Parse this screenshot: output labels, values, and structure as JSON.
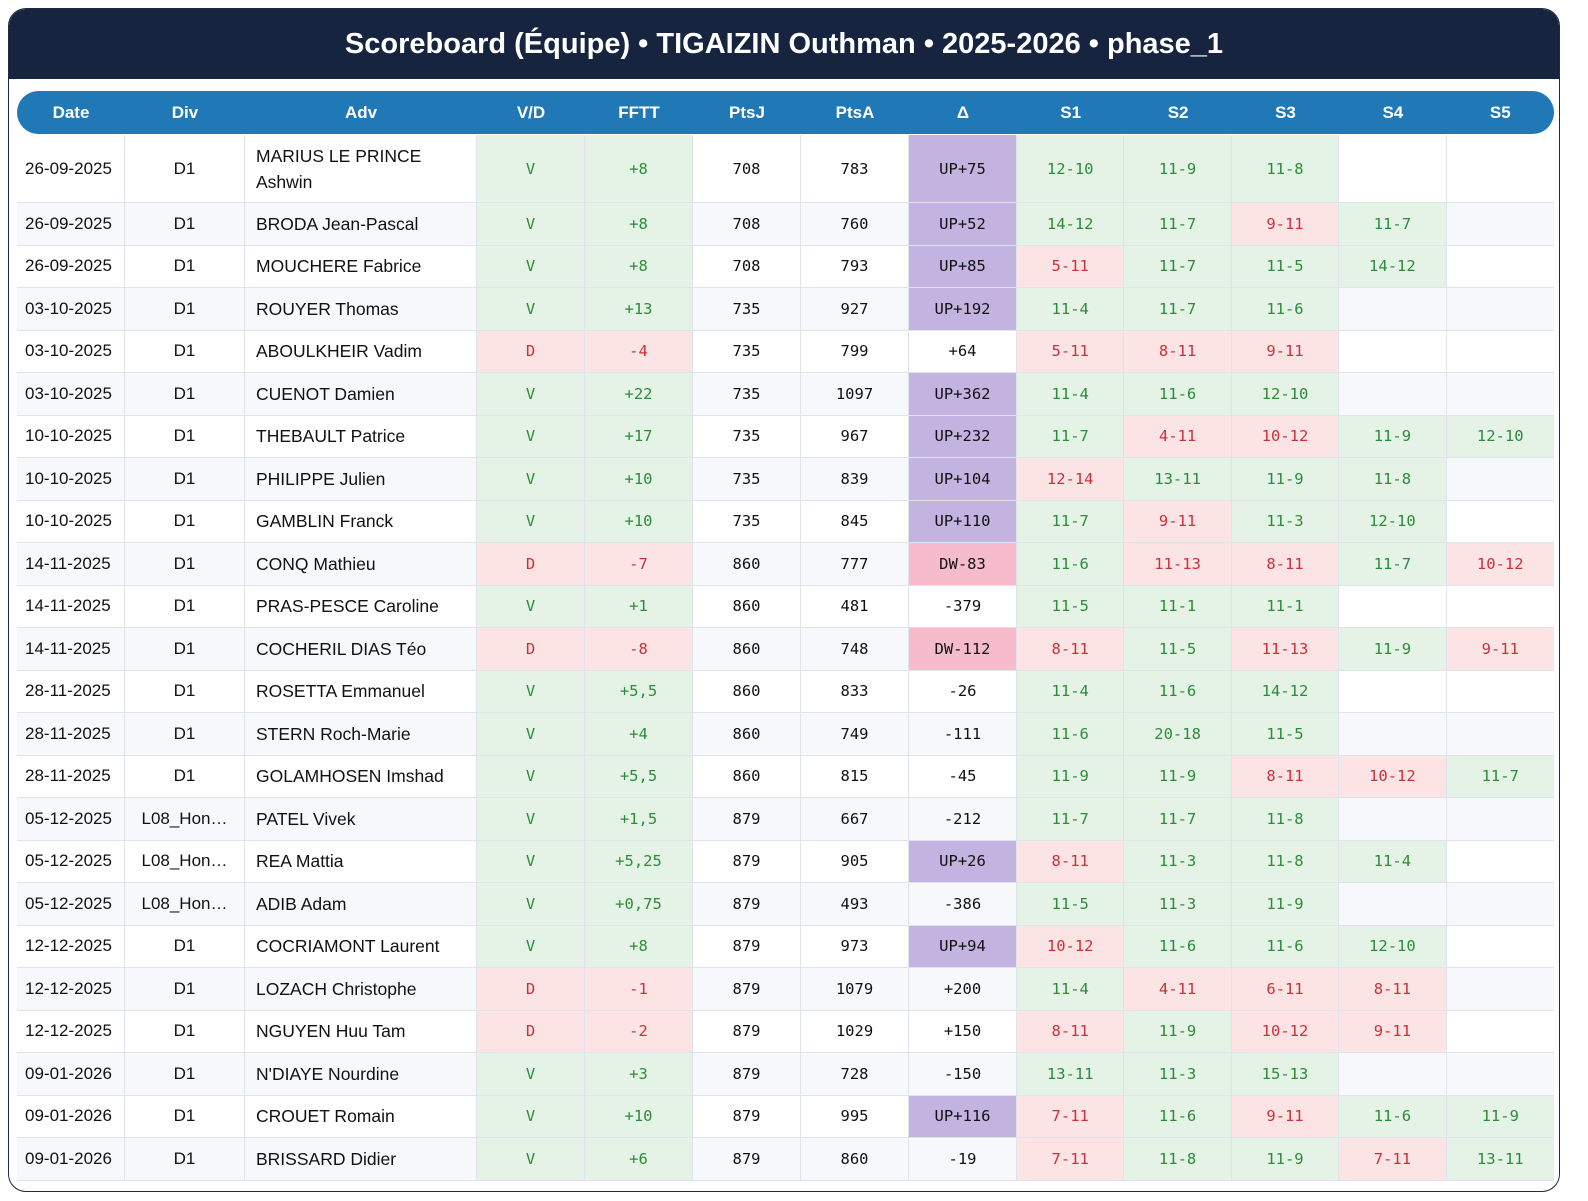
{
  "title": "Scoreboard (Équipe) • TIGAIZIN Outhman • 2025-2026 • phase_1",
  "colors": {
    "header_bg": "#16243f",
    "table_header_bg": "#2079b6",
    "win_bg": "#e4f3e5",
    "win_text": "#2e8b3a",
    "loss_bg": "#fde4e4",
    "loss_text": "#c9323a",
    "up_bg": "#c3b3e0",
    "down_bg": "#f6bccb"
  },
  "columns": [
    "Date",
    "Div",
    "Adv",
    "V/D",
    "FFTT",
    "PtsJ",
    "PtsA",
    "Δ",
    "S1",
    "S2",
    "S3",
    "S4",
    "S5"
  ],
  "rows": [
    {
      "date": "26-09-2025",
      "div": "D1",
      "adv": "MARIUS LE PRINCE Ashwin",
      "vd": "V",
      "fftt": "+8",
      "ptsj": "708",
      "ptsa": "783",
      "delta": "UP+75",
      "sets": [
        "12-10",
        "11-9",
        "11-8",
        "",
        ""
      ]
    },
    {
      "date": "26-09-2025",
      "div": "D1",
      "adv": "BRODA Jean-Pascal",
      "vd": "V",
      "fftt": "+8",
      "ptsj": "708",
      "ptsa": "760",
      "delta": "UP+52",
      "sets": [
        "14-12",
        "11-7",
        "9-11",
        "11-7",
        ""
      ]
    },
    {
      "date": "26-09-2025",
      "div": "D1",
      "adv": "MOUCHERE Fabrice",
      "vd": "V",
      "fftt": "+8",
      "ptsj": "708",
      "ptsa": "793",
      "delta": "UP+85",
      "sets": [
        "5-11",
        "11-7",
        "11-5",
        "14-12",
        ""
      ]
    },
    {
      "date": "03-10-2025",
      "div": "D1",
      "adv": "ROUYER Thomas",
      "vd": "V",
      "fftt": "+13",
      "ptsj": "735",
      "ptsa": "927",
      "delta": "UP+192",
      "sets": [
        "11-4",
        "11-7",
        "11-6",
        "",
        ""
      ]
    },
    {
      "date": "03-10-2025",
      "div": "D1",
      "adv": "ABOULKHEIR Vadim",
      "vd": "D",
      "fftt": "-4",
      "ptsj": "735",
      "ptsa": "799",
      "delta": "+64",
      "sets": [
        "5-11",
        "8-11",
        "9-11",
        "",
        ""
      ]
    },
    {
      "date": "03-10-2025",
      "div": "D1",
      "adv": "CUENOT Damien",
      "vd": "V",
      "fftt": "+22",
      "ptsj": "735",
      "ptsa": "1097",
      "delta": "UP+362",
      "sets": [
        "11-4",
        "11-6",
        "12-10",
        "",
        ""
      ]
    },
    {
      "date": "10-10-2025",
      "div": "D1",
      "adv": "THEBAULT Patrice",
      "vd": "V",
      "fftt": "+17",
      "ptsj": "735",
      "ptsa": "967",
      "delta": "UP+232",
      "sets": [
        "11-7",
        "4-11",
        "10-12",
        "11-9",
        "12-10"
      ]
    },
    {
      "date": "10-10-2025",
      "div": "D1",
      "adv": "PHILIPPE Julien",
      "vd": "V",
      "fftt": "+10",
      "ptsj": "735",
      "ptsa": "839",
      "delta": "UP+104",
      "sets": [
        "12-14",
        "13-11",
        "11-9",
        "11-8",
        ""
      ]
    },
    {
      "date": "10-10-2025",
      "div": "D1",
      "adv": "GAMBLIN Franck",
      "vd": "V",
      "fftt": "+10",
      "ptsj": "735",
      "ptsa": "845",
      "delta": "UP+110",
      "sets": [
        "11-7",
        "9-11",
        "11-3",
        "12-10",
        ""
      ]
    },
    {
      "date": "14-11-2025",
      "div": "D1",
      "adv": "CONQ Mathieu",
      "vd": "D",
      "fftt": "-7",
      "ptsj": "860",
      "ptsa": "777",
      "delta": "DW-83",
      "sets": [
        "11-6",
        "11-13",
        "8-11",
        "11-7",
        "10-12"
      ]
    },
    {
      "date": "14-11-2025",
      "div": "D1",
      "adv": "PRAS-PESCE Caroline",
      "vd": "V",
      "fftt": "+1",
      "ptsj": "860",
      "ptsa": "481",
      "delta": "-379",
      "sets": [
        "11-5",
        "11-1",
        "11-1",
        "",
        ""
      ]
    },
    {
      "date": "14-11-2025",
      "div": "D1",
      "adv": "COCHERIL DIAS Téo",
      "vd": "D",
      "fftt": "-8",
      "ptsj": "860",
      "ptsa": "748",
      "delta": "DW-112",
      "sets": [
        "8-11",
        "11-5",
        "11-13",
        "11-9",
        "9-11"
      ]
    },
    {
      "date": "28-11-2025",
      "div": "D1",
      "adv": "ROSETTA Emmanuel",
      "vd": "V",
      "fftt": "+5,5",
      "ptsj": "860",
      "ptsa": "833",
      "delta": "-26",
      "sets": [
        "11-4",
        "11-6",
        "14-12",
        "",
        ""
      ]
    },
    {
      "date": "28-11-2025",
      "div": "D1",
      "adv": "STERN Roch-Marie",
      "vd": "V",
      "fftt": "+4",
      "ptsj": "860",
      "ptsa": "749",
      "delta": "-111",
      "sets": [
        "11-6",
        "20-18",
        "11-5",
        "",
        ""
      ]
    },
    {
      "date": "28-11-2025",
      "div": "D1",
      "adv": "GOLAMHOSEN Imshad",
      "vd": "V",
      "fftt": "+5,5",
      "ptsj": "860",
      "ptsa": "815",
      "delta": "-45",
      "sets": [
        "11-9",
        "11-9",
        "8-11",
        "10-12",
        "11-7"
      ]
    },
    {
      "date": "05-12-2025",
      "div": "L08_Hon…",
      "adv": "PATEL Vivek",
      "vd": "V",
      "fftt": "+1,5",
      "ptsj": "879",
      "ptsa": "667",
      "delta": "-212",
      "sets": [
        "11-7",
        "11-7",
        "11-8",
        "",
        ""
      ]
    },
    {
      "date": "05-12-2025",
      "div": "L08_Hon…",
      "adv": "REA Mattia",
      "vd": "V",
      "fftt": "+5,25",
      "ptsj": "879",
      "ptsa": "905",
      "delta": "UP+26",
      "sets": [
        "8-11",
        "11-3",
        "11-8",
        "11-4",
        ""
      ]
    },
    {
      "date": "05-12-2025",
      "div": "L08_Hon…",
      "adv": "ADIB Adam",
      "vd": "V",
      "fftt": "+0,75",
      "ptsj": "879",
      "ptsa": "493",
      "delta": "-386",
      "sets": [
        "11-5",
        "11-3",
        "11-9",
        "",
        ""
      ]
    },
    {
      "date": "12-12-2025",
      "div": "D1",
      "adv": "COCRIAMONT Laurent",
      "vd": "V",
      "fftt": "+8",
      "ptsj": "879",
      "ptsa": "973",
      "delta": "UP+94",
      "sets": [
        "10-12",
        "11-6",
        "11-6",
        "12-10",
        ""
      ]
    },
    {
      "date": "12-12-2025",
      "div": "D1",
      "adv": "LOZACH Christophe",
      "vd": "D",
      "fftt": "-1",
      "ptsj": "879",
      "ptsa": "1079",
      "delta": "+200",
      "sets": [
        "11-4",
        "4-11",
        "6-11",
        "8-11",
        ""
      ]
    },
    {
      "date": "12-12-2025",
      "div": "D1",
      "adv": "NGUYEN Huu Tam",
      "vd": "D",
      "fftt": "-2",
      "ptsj": "879",
      "ptsa": "1029",
      "delta": "+150",
      "sets": [
        "8-11",
        "11-9",
        "10-12",
        "9-11",
        ""
      ]
    },
    {
      "date": "09-01-2026",
      "div": "D1",
      "adv": "N'DIAYE Nourdine",
      "vd": "V",
      "fftt": "+3",
      "ptsj": "879",
      "ptsa": "728",
      "delta": "-150",
      "sets": [
        "13-11",
        "11-3",
        "15-13",
        "",
        ""
      ]
    },
    {
      "date": "09-01-2026",
      "div": "D1",
      "adv": "CROUET Romain",
      "vd": "V",
      "fftt": "+10",
      "ptsj": "879",
      "ptsa": "995",
      "delta": "UP+116",
      "sets": [
        "7-11",
        "11-6",
        "9-11",
        "11-6",
        "11-9"
      ]
    },
    {
      "date": "09-01-2026",
      "div": "D1",
      "adv": "BRISSARD Didier",
      "vd": "V",
      "fftt": "+6",
      "ptsj": "879",
      "ptsa": "860",
      "delta": "-19",
      "sets": [
        "7-11",
        "11-8",
        "11-9",
        "7-11",
        "13-11"
      ]
    }
  ]
}
